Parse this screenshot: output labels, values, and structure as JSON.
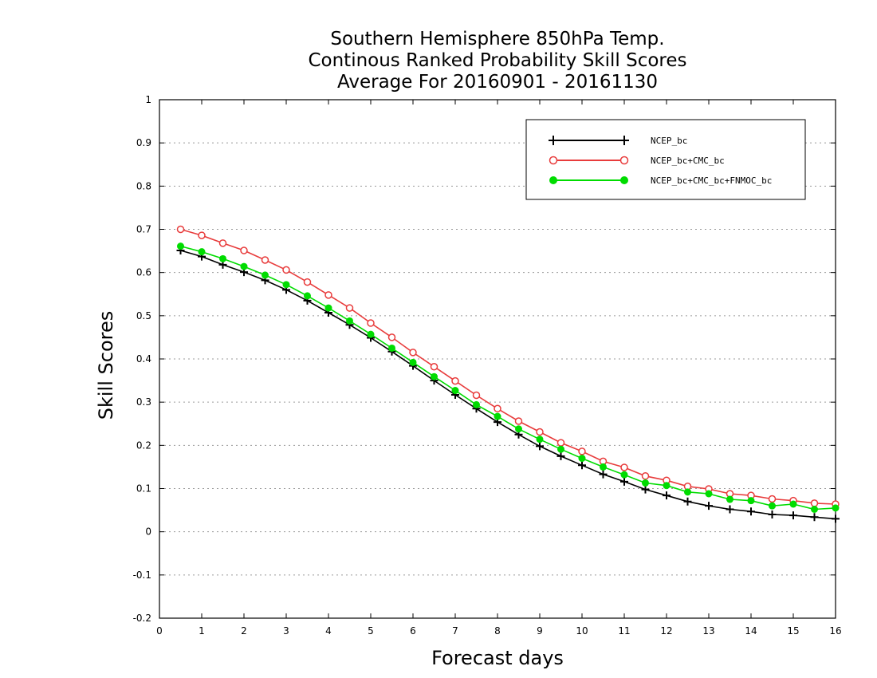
{
  "colors": {
    "background": "#ffffff",
    "axes": "#000000",
    "grid": "#9a9a9a",
    "ncep": "#000000",
    "ncep_cmc": "#e83c3c",
    "ncep_cmc_fnmoc": "#00dc00"
  },
  "chart_data": {
    "type": "line",
    "title": [
      "Southern Hemisphere 850hPa Temp.",
      "Continous Ranked Probability Skill Scores",
      "Average For 20160901 - 20161130"
    ],
    "xlabel": "Forecast days",
    "ylabel": "Skill Scores",
    "xlim": [
      0,
      16
    ],
    "ylim": [
      -0.2,
      1
    ],
    "xticks": [
      "0",
      "1",
      "2",
      "3",
      "4",
      "5",
      "6",
      "7",
      "8",
      "9",
      "10",
      "11",
      "12",
      "13",
      "14",
      "15",
      "16"
    ],
    "yticks": [
      "-0.2",
      "-0.1",
      "0",
      "0.1",
      "0.2",
      "0.3",
      "0.4",
      "0.5",
      "0.6",
      "0.7",
      "0.8",
      "0.9",
      "1"
    ],
    "ytick_values": [
      -0.2,
      -0.1,
      0,
      0.1,
      0.2,
      0.3,
      0.4,
      0.5,
      0.6,
      0.7,
      0.8,
      0.9,
      1
    ],
    "grid": true,
    "legend_position": "top-right",
    "x": [
      0.5,
      1,
      1.5,
      2,
      2.5,
      3,
      3.5,
      4,
      4.5,
      5,
      5.5,
      6,
      6.5,
      7,
      7.5,
      8,
      8.5,
      9,
      9.5,
      10,
      10.5,
      11,
      11.5,
      12,
      12.5,
      13,
      13.5,
      14,
      14.5,
      15,
      15.5,
      16
    ],
    "series": [
      {
        "name": "NCEP_bc",
        "marker": "plus",
        "values": [
          0.651,
          0.637,
          0.618,
          0.601,
          0.582,
          0.56,
          0.535,
          0.507,
          0.479,
          0.449,
          0.417,
          0.384,
          0.35,
          0.317,
          0.285,
          0.254,
          0.225,
          0.198,
          0.175,
          0.154,
          0.133,
          0.116,
          0.098,
          0.084,
          0.07,
          0.06,
          0.052,
          0.047,
          0.04,
          0.038,
          0.034,
          0.03
        ]
      },
      {
        "name": "NCEP_bc+CMC_bc",
        "marker": "open-circle",
        "values": [
          0.7,
          0.686,
          0.668,
          0.651,
          0.629,
          0.606,
          0.578,
          0.548,
          0.518,
          0.483,
          0.45,
          0.415,
          0.382,
          0.349,
          0.316,
          0.285,
          0.256,
          0.231,
          0.206,
          0.186,
          0.163,
          0.149,
          0.129,
          0.119,
          0.105,
          0.099,
          0.088,
          0.084,
          0.076,
          0.072,
          0.066,
          0.064
        ]
      },
      {
        "name": "NCEP_bc+CMC_bc+FNMOC_bc",
        "marker": "filled-circle",
        "values": [
          0.661,
          0.648,
          0.632,
          0.614,
          0.594,
          0.572,
          0.546,
          0.518,
          0.488,
          0.457,
          0.425,
          0.392,
          0.359,
          0.327,
          0.294,
          0.267,
          0.238,
          0.214,
          0.191,
          0.17,
          0.15,
          0.132,
          0.113,
          0.107,
          0.092,
          0.088,
          0.075,
          0.072,
          0.06,
          0.064,
          0.052,
          0.055
        ]
      }
    ]
  }
}
